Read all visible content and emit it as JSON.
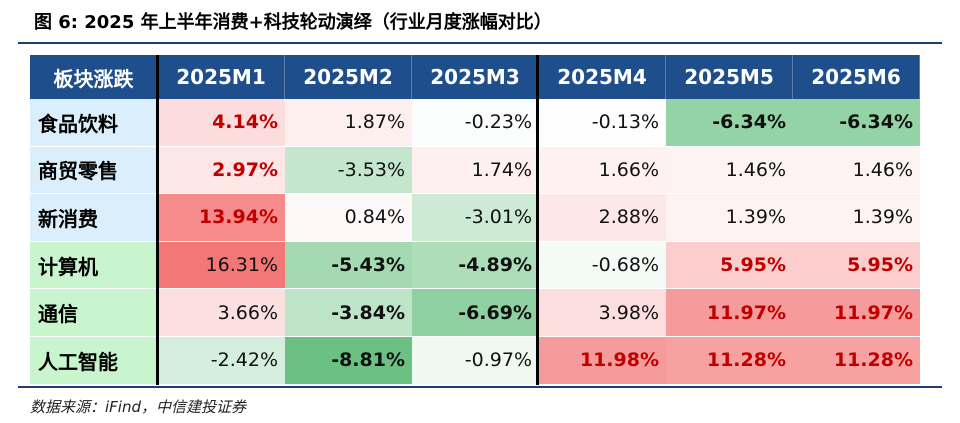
{
  "title": "图 6: 2025 年上半年消费+科技轮动演绎（行业月度涨幅对比）",
  "source": "数据来源：iFind，中信建投证券",
  "chart_data": {
    "type": "table",
    "corner_label": "板块涨跌",
    "columns": [
      "2025M1",
      "2025M2",
      "2025M3",
      "2025M4",
      "2025M5",
      "2025M6"
    ],
    "rows": [
      {
        "name": "食品饮料",
        "group": "consumer",
        "values": [
          4.14,
          1.87,
          -0.23,
          -0.13,
          -6.34,
          -6.34
        ],
        "labels": [
          "4.14%",
          "1.87%",
          "-0.23%",
          "-0.13%",
          "-6.34%",
          "-6.34%"
        ],
        "bold": [
          true,
          false,
          false,
          false,
          true,
          true
        ]
      },
      {
        "name": "商贸零售",
        "group": "consumer",
        "values": [
          2.97,
          -3.53,
          1.74,
          1.66,
          1.46,
          1.46
        ],
        "labels": [
          "2.97%",
          "-3.53%",
          "1.74%",
          "1.66%",
          "1.46%",
          "1.46%"
        ],
        "bold": [
          true,
          false,
          false,
          false,
          false,
          false
        ]
      },
      {
        "name": "新消费",
        "group": "consumer",
        "values": [
          13.94,
          0.84,
          -3.01,
          2.88,
          1.39,
          1.39
        ],
        "labels": [
          "13.94%",
          "0.84%",
          "-3.01%",
          "2.88%",
          "1.39%",
          "1.39%"
        ],
        "bold": [
          true,
          false,
          false,
          false,
          false,
          false
        ]
      },
      {
        "name": "计算机",
        "group": "tech",
        "values": [
          16.31,
          -5.43,
          -4.89,
          -0.68,
          5.95,
          5.95
        ],
        "labels": [
          "16.31%",
          "-5.43%",
          "-4.89%",
          "-0.68%",
          "5.95%",
          "5.95%"
        ],
        "bold": [
          false,
          true,
          true,
          false,
          true,
          true
        ]
      },
      {
        "name": "通信",
        "group": "tech",
        "values": [
          3.66,
          -3.84,
          -6.69,
          3.98,
          11.97,
          11.97
        ],
        "labels": [
          "3.66%",
          "-3.84%",
          "-6.69%",
          "3.98%",
          "11.97%",
          "11.97%"
        ],
        "bold": [
          false,
          true,
          true,
          false,
          true,
          true
        ]
      },
      {
        "name": "人工智能",
        "group": "tech",
        "values": [
          -2.42,
          -8.81,
          -0.97,
          11.98,
          11.28,
          11.28
        ],
        "labels": [
          "-2.42%",
          "-8.81%",
          "-0.97%",
          "11.98%",
          "11.28%",
          "11.28%"
        ],
        "bold": [
          false,
          true,
          false,
          true,
          true,
          true
        ]
      }
    ],
    "colors": {
      "header_bg": "#1f4e8c",
      "consumer_row_bg": "#dbeefb",
      "tech_row_bg": "#c8f5cd",
      "positive": "#f26b6b",
      "negative": "#63be7b",
      "emphasis_text": "#c00000"
    }
  }
}
